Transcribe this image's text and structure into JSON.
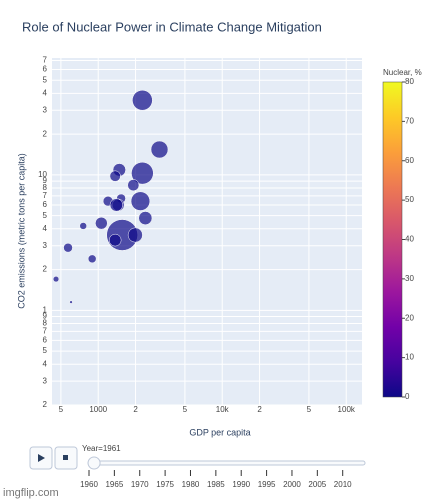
{
  "chart_data": {
    "type": "scatter",
    "title": "Role of Nuclear Power in Climate Change Mitigation",
    "x_label": "GDP per capita",
    "y_label": "CO2 emissions (metric tons per capita)",
    "log_x": true,
    "log_y": true,
    "grid": true,
    "xlim": [
      424,
      134000
    ],
    "ylim": [
      0.2,
      73
    ],
    "xticks": [
      {
        "value": 500,
        "label": "5"
      },
      1000,
      {
        "value": 2000,
        "label": "2"
      },
      {
        "value": 5000,
        "label": "5"
      },
      {
        "value": 10000,
        "label": "10k"
      },
      {
        "value": 20000,
        "label": "2"
      },
      {
        "value": 50000,
        "label": "5"
      },
      {
        "value": 100000,
        "label": "100k"
      }
    ],
    "yticks": [
      {
        "value": 0.2,
        "label": "2"
      },
      {
        "value": 0.3,
        "label": "3"
      },
      {
        "value": 0.4,
        "label": "4"
      },
      {
        "value": 0.5,
        "label": "5"
      },
      {
        "value": 0.6,
        "label": "6"
      },
      {
        "value": 0.7,
        "label": "7"
      },
      {
        "value": 0.8,
        "label": "8"
      },
      {
        "value": 0.9,
        "label": "9"
      },
      1,
      2,
      3,
      4,
      5,
      6,
      7,
      8,
      9,
      10,
      {
        "value": 20,
        "label": "2"
      },
      {
        "value": 30,
        "label": "3"
      },
      {
        "value": 40,
        "label": "4"
      },
      {
        "value": 50,
        "label": "5"
      },
      {
        "value": 60,
        "label": "6"
      },
      {
        "value": 70,
        "label": "7"
      }
    ],
    "x": [
      2270,
      3120,
      2270,
      1480,
      1370,
      1920,
      1200,
      1530,
      2190,
      1450,
      1400,
      2400,
      1060,
      757,
      1560,
      1990,
      1370,
      571,
      894,
      457,
      604
    ],
    "y": [
      35.6,
      15.4,
      10.3,
      10.9,
      9.8,
      8.4,
      6.4,
      6.7,
      6.4,
      6.0,
      6.0,
      4.8,
      4.4,
      4.2,
      3.6,
      3.6,
      3.3,
      2.9,
      2.4,
      1.7,
      1.15
    ],
    "sizes": [
      25,
      18,
      30,
      10,
      7,
      8,
      6,
      5,
      22,
      9,
      10,
      11,
      9,
      3,
      60,
      13,
      9,
      5,
      4,
      2,
      0.5
    ],
    "nuclear": [
      0,
      0,
      0,
      0,
      0,
      0,
      0,
      0,
      0,
      0,
      0,
      0,
      0,
      0,
      0,
      0,
      0,
      0,
      0,
      0,
      0
    ],
    "colorbar_title": "Nuclear, %",
    "clim": [
      0,
      80
    ],
    "cticks": [
      0,
      10,
      20,
      30,
      40,
      50,
      60,
      70,
      80
    ],
    "colorscale": [
      "#0d0887",
      "#46039f",
      "#7201a8",
      "#9c179e",
      "#bd3786",
      "#d8576b",
      "#ed7953",
      "#fb9f3a",
      "#fdca26",
      "#f0f921"
    ],
    "slider": {
      "label": "Year=1961",
      "value": 1961,
      "range": [
        1960,
        2014
      ],
      "ticks": [
        1960,
        1965,
        1970,
        1975,
        1980,
        1985,
        1990,
        1995,
        2000,
        2005,
        2010
      ]
    },
    "watermark": "imgflip.com"
  }
}
